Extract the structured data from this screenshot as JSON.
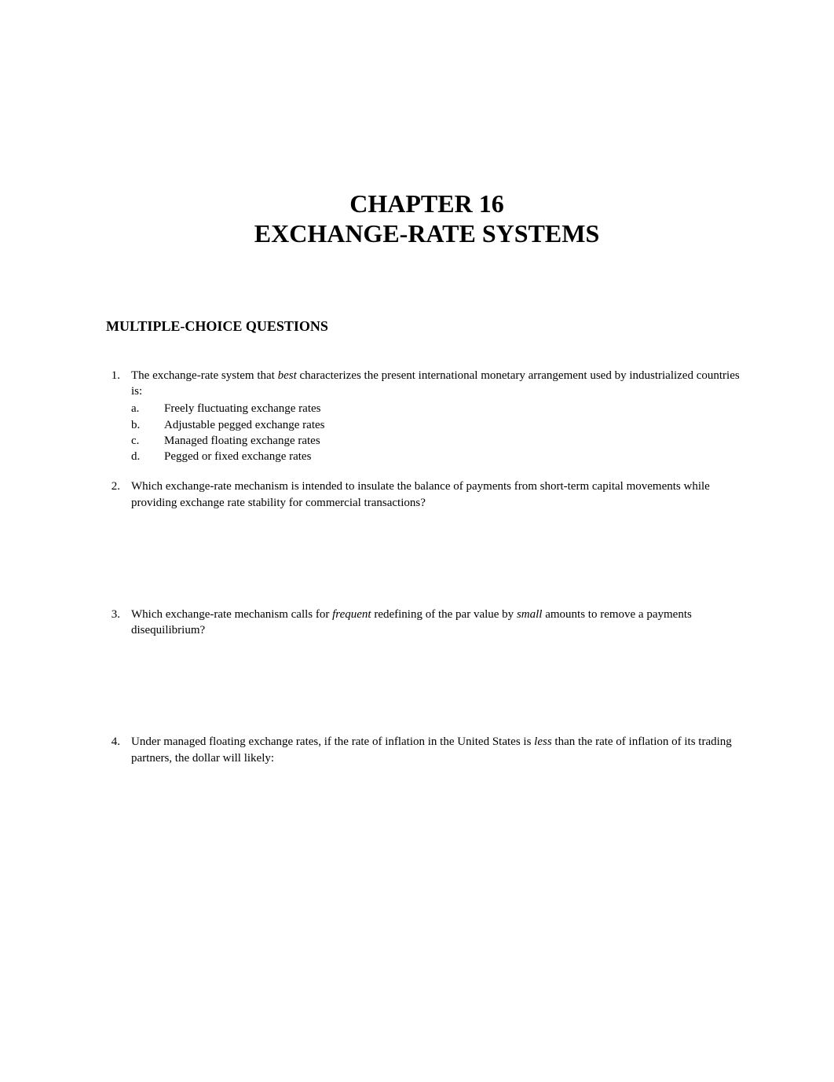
{
  "chapter": {
    "line1": "CHAPTER 16",
    "line2": "EXCHANGE-RATE SYSTEMS"
  },
  "section_heading": "MULTIPLE-CHOICE QUESTIONS",
  "questions": [
    {
      "number": "1.",
      "stem_parts": [
        {
          "text": "The exchange-rate system that ",
          "italic": false
        },
        {
          "text": "best",
          "italic": true
        },
        {
          "text": " characterizes the present international monetary arrangement used by industrialized countries is:",
          "italic": false
        }
      ],
      "options": [
        {
          "letter": "a.",
          "text": "Freely fluctuating exchange rates"
        },
        {
          "letter": "b.",
          "text": "Adjustable pegged exchange rates"
        },
        {
          "letter": "c.",
          "text": "Managed floating exchange rates"
        },
        {
          "letter": "d.",
          "text": "Pegged or fixed exchange rates"
        }
      ]
    },
    {
      "number": "2.",
      "stem_parts": [
        {
          "text": "Which exchange-rate mechanism is intended to insulate the balance of payments from short-term capital movements while providing exchange rate stability for commercial transactions?",
          "italic": false
        }
      ],
      "options": []
    },
    {
      "number": "3.",
      "stem_parts": [
        {
          "text": "Which exchange-rate mechanism calls for ",
          "italic": false
        },
        {
          "text": "frequent",
          "italic": true
        },
        {
          "text": " redefining of the par value by ",
          "italic": false
        },
        {
          "text": "small",
          "italic": true
        },
        {
          "text": " amounts to remove a payments disequilibrium?",
          "italic": false
        }
      ],
      "options": []
    },
    {
      "number": "4.",
      "stem_parts": [
        {
          "text": "Under managed floating exchange rates, if the rate of inflation in the United States is ",
          "italic": false
        },
        {
          "text": "less",
          "italic": true
        },
        {
          "text": " than the rate of inflation of its trading partners, the dollar will likely:",
          "italic": false
        }
      ],
      "options": []
    }
  ]
}
